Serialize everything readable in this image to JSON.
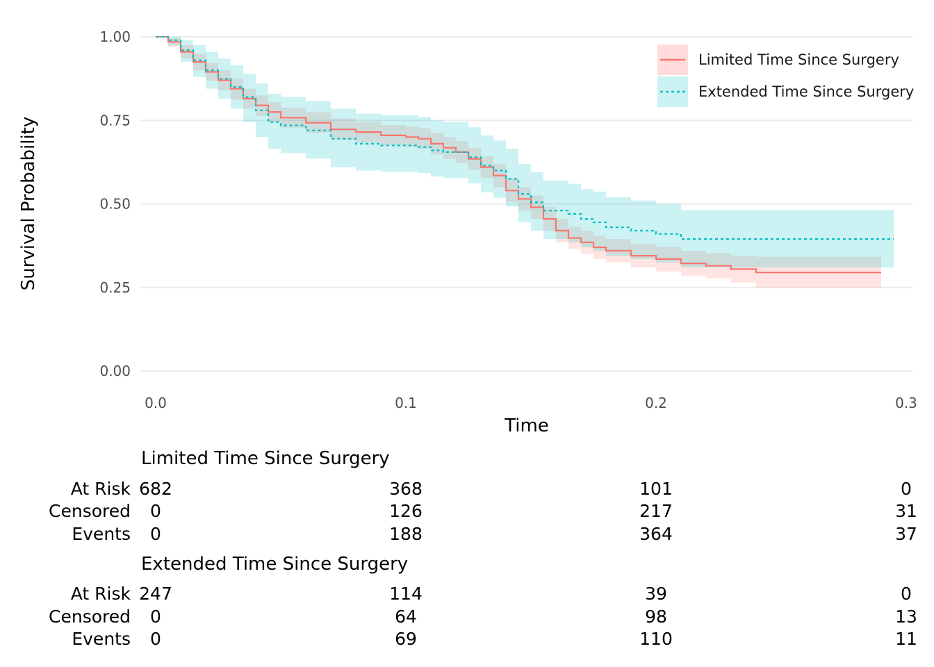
{
  "chart_data": {
    "type": "line",
    "subtype": "kaplan-meier",
    "title": "",
    "xlabel": "Time",
    "ylabel": "Survival Probability",
    "xlim": [
      0,
      0.3
    ],
    "ylim": [
      0,
      1
    ],
    "x_ticks": [
      "0.0",
      "0.1",
      "0.2",
      "0.3"
    ],
    "y_ticks": [
      "0.00",
      "0.25",
      "0.50",
      "0.75",
      "1.00"
    ],
    "grid": "horizontal",
    "legend_position": "top-right",
    "series": [
      {
        "name": "Limited Time Since Surgery",
        "color": "#F8766D",
        "fill_color": "#FFDCDB",
        "line_style": "solid",
        "points": [
          [
            0,
            1.0
          ],
          [
            0.005,
            0.985
          ],
          [
            0.01,
            0.955
          ],
          [
            0.015,
            0.925
          ],
          [
            0.02,
            0.895
          ],
          [
            0.025,
            0.87
          ],
          [
            0.03,
            0.845
          ],
          [
            0.035,
            0.815
          ],
          [
            0.04,
            0.795
          ],
          [
            0.045,
            0.775
          ],
          [
            0.05,
            0.758
          ],
          [
            0.06,
            0.743
          ],
          [
            0.07,
            0.723
          ],
          [
            0.08,
            0.715
          ],
          [
            0.09,
            0.705
          ],
          [
            0.1,
            0.7
          ],
          [
            0.105,
            0.695
          ],
          [
            0.11,
            0.68
          ],
          [
            0.115,
            0.668
          ],
          [
            0.12,
            0.655
          ],
          [
            0.125,
            0.635
          ],
          [
            0.13,
            0.61
          ],
          [
            0.135,
            0.585
          ],
          [
            0.14,
            0.54
          ],
          [
            0.145,
            0.515
          ],
          [
            0.15,
            0.49
          ],
          [
            0.155,
            0.455
          ],
          [
            0.16,
            0.42
          ],
          [
            0.165,
            0.398
          ],
          [
            0.17,
            0.385
          ],
          [
            0.175,
            0.37
          ],
          [
            0.18,
            0.36
          ],
          [
            0.19,
            0.345
          ],
          [
            0.2,
            0.335
          ],
          [
            0.21,
            0.322
          ],
          [
            0.22,
            0.315
          ],
          [
            0.23,
            0.305
          ],
          [
            0.24,
            0.295
          ],
          [
            0.29,
            0.295
          ]
        ],
        "ci_lower": [
          [
            0,
            1.0
          ],
          [
            0.005,
            0.97
          ],
          [
            0.01,
            0.935
          ],
          [
            0.015,
            0.9
          ],
          [
            0.02,
            0.868
          ],
          [
            0.025,
            0.84
          ],
          [
            0.03,
            0.812
          ],
          [
            0.035,
            0.785
          ],
          [
            0.04,
            0.763
          ],
          [
            0.045,
            0.745
          ],
          [
            0.05,
            0.728
          ],
          [
            0.06,
            0.712
          ],
          [
            0.07,
            0.692
          ],
          [
            0.08,
            0.684
          ],
          [
            0.09,
            0.675
          ],
          [
            0.1,
            0.67
          ],
          [
            0.105,
            0.664
          ],
          [
            0.11,
            0.648
          ],
          [
            0.115,
            0.635
          ],
          [
            0.12,
            0.622
          ],
          [
            0.125,
            0.602
          ],
          [
            0.13,
            0.577
          ],
          [
            0.135,
            0.55
          ],
          [
            0.14,
            0.505
          ],
          [
            0.145,
            0.48
          ],
          [
            0.15,
            0.455
          ],
          [
            0.155,
            0.42
          ],
          [
            0.16,
            0.385
          ],
          [
            0.165,
            0.365
          ],
          [
            0.17,
            0.35
          ],
          [
            0.175,
            0.335
          ],
          [
            0.18,
            0.325
          ],
          [
            0.19,
            0.31
          ],
          [
            0.2,
            0.298
          ],
          [
            0.21,
            0.285
          ],
          [
            0.22,
            0.277
          ],
          [
            0.23,
            0.265
          ],
          [
            0.24,
            0.25
          ],
          [
            0.29,
            0.25
          ]
        ],
        "ci_upper": [
          [
            0,
            1.0
          ],
          [
            0.005,
            0.995
          ],
          [
            0.01,
            0.975
          ],
          [
            0.015,
            0.95
          ],
          [
            0.02,
            0.922
          ],
          [
            0.025,
            0.9
          ],
          [
            0.03,
            0.875
          ],
          [
            0.035,
            0.845
          ],
          [
            0.04,
            0.825
          ],
          [
            0.045,
            0.805
          ],
          [
            0.05,
            0.788
          ],
          [
            0.06,
            0.775
          ],
          [
            0.07,
            0.755
          ],
          [
            0.08,
            0.746
          ],
          [
            0.09,
            0.736
          ],
          [
            0.1,
            0.731
          ],
          [
            0.105,
            0.726
          ],
          [
            0.11,
            0.712
          ],
          [
            0.115,
            0.7
          ],
          [
            0.12,
            0.688
          ],
          [
            0.125,
            0.668
          ],
          [
            0.13,
            0.643
          ],
          [
            0.135,
            0.62
          ],
          [
            0.14,
            0.577
          ],
          [
            0.145,
            0.55
          ],
          [
            0.15,
            0.525
          ],
          [
            0.155,
            0.49
          ],
          [
            0.16,
            0.455
          ],
          [
            0.165,
            0.432
          ],
          [
            0.17,
            0.42
          ],
          [
            0.175,
            0.405
          ],
          [
            0.18,
            0.395
          ],
          [
            0.19,
            0.38
          ],
          [
            0.2,
            0.372
          ],
          [
            0.21,
            0.36
          ],
          [
            0.22,
            0.353
          ],
          [
            0.23,
            0.345
          ],
          [
            0.24,
            0.342
          ],
          [
            0.29,
            0.342
          ]
        ]
      },
      {
        "name": "Extended Time Since Surgery",
        "color": "#00BFC4",
        "fill_color": "#CCF2F3",
        "line_style": "dotted",
        "points": [
          [
            0,
            1.0
          ],
          [
            0.005,
            0.99
          ],
          [
            0.01,
            0.96
          ],
          [
            0.015,
            0.93
          ],
          [
            0.02,
            0.9
          ],
          [
            0.025,
            0.875
          ],
          [
            0.03,
            0.85
          ],
          [
            0.035,
            0.82
          ],
          [
            0.04,
            0.78
          ],
          [
            0.045,
            0.745
          ],
          [
            0.05,
            0.735
          ],
          [
            0.06,
            0.72
          ],
          [
            0.07,
            0.695
          ],
          [
            0.08,
            0.68
          ],
          [
            0.09,
            0.675
          ],
          [
            0.1,
            0.675
          ],
          [
            0.105,
            0.67
          ],
          [
            0.11,
            0.66
          ],
          [
            0.115,
            0.655
          ],
          [
            0.12,
            0.655
          ],
          [
            0.125,
            0.64
          ],
          [
            0.13,
            0.615
          ],
          [
            0.135,
            0.6
          ],
          [
            0.14,
            0.575
          ],
          [
            0.145,
            0.53
          ],
          [
            0.15,
            0.505
          ],
          [
            0.155,
            0.48
          ],
          [
            0.165,
            0.47
          ],
          [
            0.17,
            0.455
          ],
          [
            0.175,
            0.445
          ],
          [
            0.18,
            0.43
          ],
          [
            0.19,
            0.42
          ],
          [
            0.2,
            0.41
          ],
          [
            0.21,
            0.395
          ],
          [
            0.295,
            0.395
          ]
        ],
        "ci_lower": [
          [
            0,
            1.0
          ],
          [
            0.005,
            0.975
          ],
          [
            0.01,
            0.925
          ],
          [
            0.015,
            0.88
          ],
          [
            0.02,
            0.845
          ],
          [
            0.025,
            0.815
          ],
          [
            0.03,
            0.785
          ],
          [
            0.035,
            0.745
          ],
          [
            0.04,
            0.7
          ],
          [
            0.045,
            0.665
          ],
          [
            0.05,
            0.652
          ],
          [
            0.06,
            0.636
          ],
          [
            0.07,
            0.61
          ],
          [
            0.08,
            0.6
          ],
          [
            0.09,
            0.596
          ],
          [
            0.1,
            0.596
          ],
          [
            0.105,
            0.592
          ],
          [
            0.11,
            0.582
          ],
          [
            0.115,
            0.577
          ],
          [
            0.12,
            0.577
          ],
          [
            0.125,
            0.562
          ],
          [
            0.13,
            0.535
          ],
          [
            0.135,
            0.518
          ],
          [
            0.14,
            0.492
          ],
          [
            0.145,
            0.445
          ],
          [
            0.15,
            0.42
          ],
          [
            0.155,
            0.395
          ],
          [
            0.165,
            0.385
          ],
          [
            0.17,
            0.37
          ],
          [
            0.175,
            0.36
          ],
          [
            0.18,
            0.345
          ],
          [
            0.19,
            0.335
          ],
          [
            0.2,
            0.325
          ],
          [
            0.21,
            0.31
          ],
          [
            0.295,
            0.31
          ]
        ],
        "ci_upper": [
          [
            0,
            1.0
          ],
          [
            0.005,
            1.0
          ],
          [
            0.01,
            0.99
          ],
          [
            0.015,
            0.975
          ],
          [
            0.02,
            0.955
          ],
          [
            0.025,
            0.935
          ],
          [
            0.03,
            0.915
          ],
          [
            0.035,
            0.89
          ],
          [
            0.04,
            0.86
          ],
          [
            0.045,
            0.83
          ],
          [
            0.05,
            0.82
          ],
          [
            0.06,
            0.808
          ],
          [
            0.07,
            0.785
          ],
          [
            0.08,
            0.77
          ],
          [
            0.09,
            0.765
          ],
          [
            0.1,
            0.765
          ],
          [
            0.105,
            0.76
          ],
          [
            0.11,
            0.75
          ],
          [
            0.115,
            0.745
          ],
          [
            0.12,
            0.745
          ],
          [
            0.125,
            0.73
          ],
          [
            0.13,
            0.705
          ],
          [
            0.135,
            0.69
          ],
          [
            0.14,
            0.665
          ],
          [
            0.145,
            0.62
          ],
          [
            0.15,
            0.595
          ],
          [
            0.155,
            0.57
          ],
          [
            0.165,
            0.56
          ],
          [
            0.17,
            0.545
          ],
          [
            0.175,
            0.537
          ],
          [
            0.18,
            0.52
          ],
          [
            0.19,
            0.51
          ],
          [
            0.2,
            0.5
          ],
          [
            0.21,
            0.482
          ],
          [
            0.295,
            0.482
          ]
        ]
      }
    ],
    "risk_table": {
      "row_labels": [
        "At Risk",
        "Censored",
        "Events"
      ],
      "groups": [
        {
          "title": "Limited Time Since Surgery",
          "at_risk": [
            "682",
            "368",
            "101",
            "0"
          ],
          "censored": [
            "0",
            "126",
            "217",
            "31"
          ],
          "events": [
            "0",
            "188",
            "364",
            "37"
          ]
        },
        {
          "title": "Extended Time Since Surgery",
          "at_risk": [
            "247",
            "114",
            "39",
            "0"
          ],
          "censored": [
            "0",
            "64",
            "98",
            "13"
          ],
          "events": [
            "0",
            "69",
            "110",
            "11"
          ]
        }
      ]
    }
  }
}
